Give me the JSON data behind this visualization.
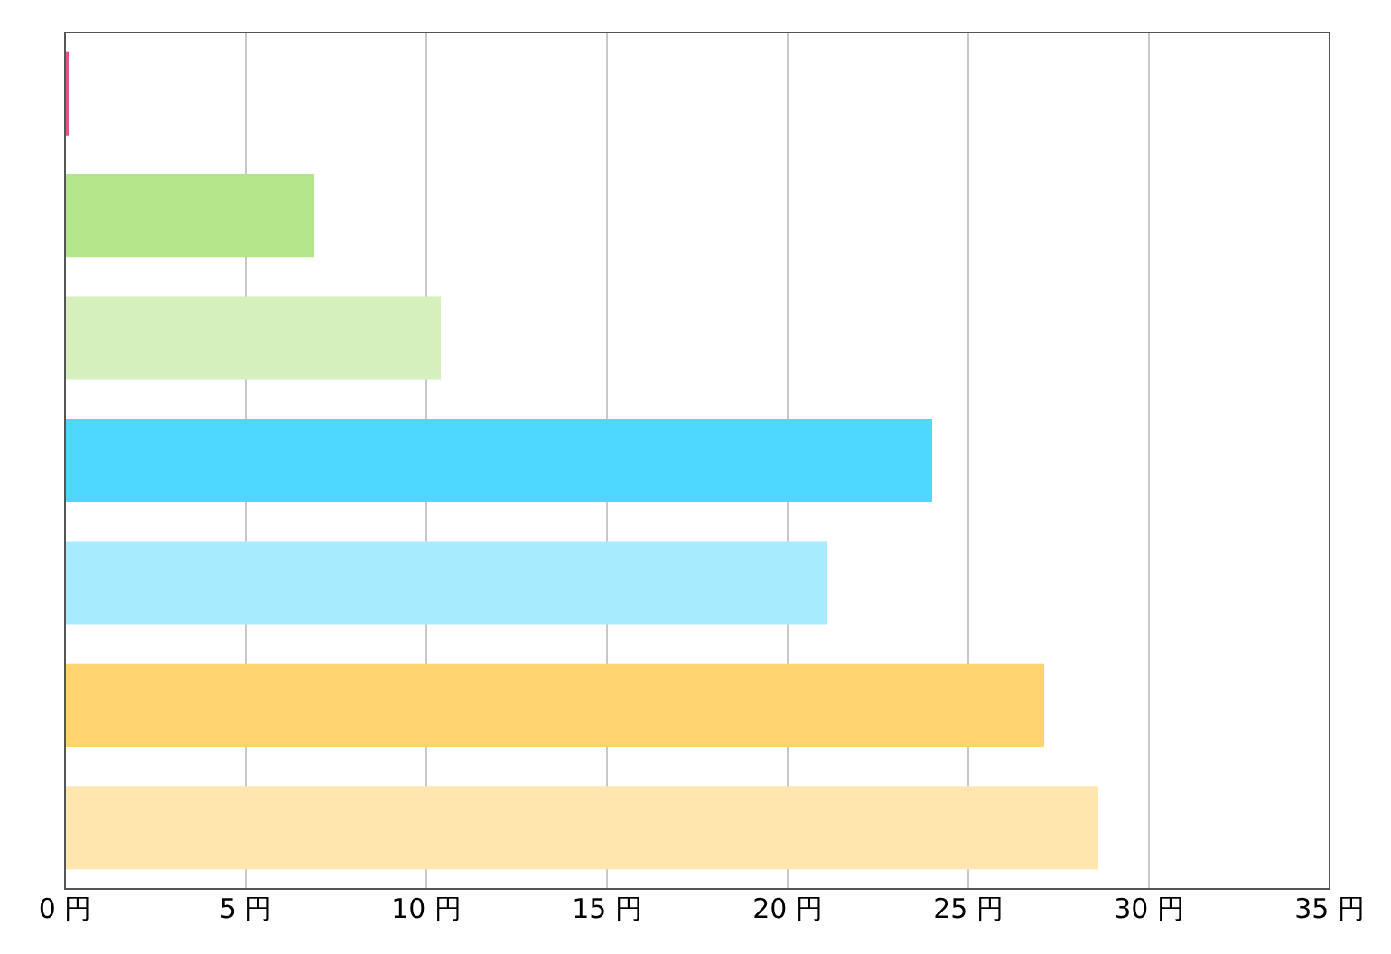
{
  "chart_data": {
    "type": "bar",
    "orientation": "horizontal",
    "categories": [
      null,
      null,
      null,
      null,
      null,
      null,
      null
    ],
    "values": [
      0.1,
      6.9,
      10.4,
      24.0,
      21.1,
      27.1,
      28.6
    ],
    "colors": [
      "#e8508a",
      "#b3e58a",
      "#d6f0bd",
      "#4fd8ff",
      "#a6ebff",
      "#ffd470",
      "#ffe6ae"
    ],
    "xlim": [
      0,
      35
    ],
    "xticks": [
      {
        "value": 0,
        "label": "0 円"
      },
      {
        "value": 5,
        "label": "5 円"
      },
      {
        "value": 10,
        "label": "10 円"
      },
      {
        "value": 15,
        "label": "15 円"
      },
      {
        "value": 20,
        "label": "20 円"
      },
      {
        "value": 25,
        "label": "25 円"
      },
      {
        "value": 30,
        "label": "30 円"
      },
      {
        "value": 35,
        "label": "35 円"
      }
    ],
    "grid": "x",
    "tick_labels": "x"
  }
}
